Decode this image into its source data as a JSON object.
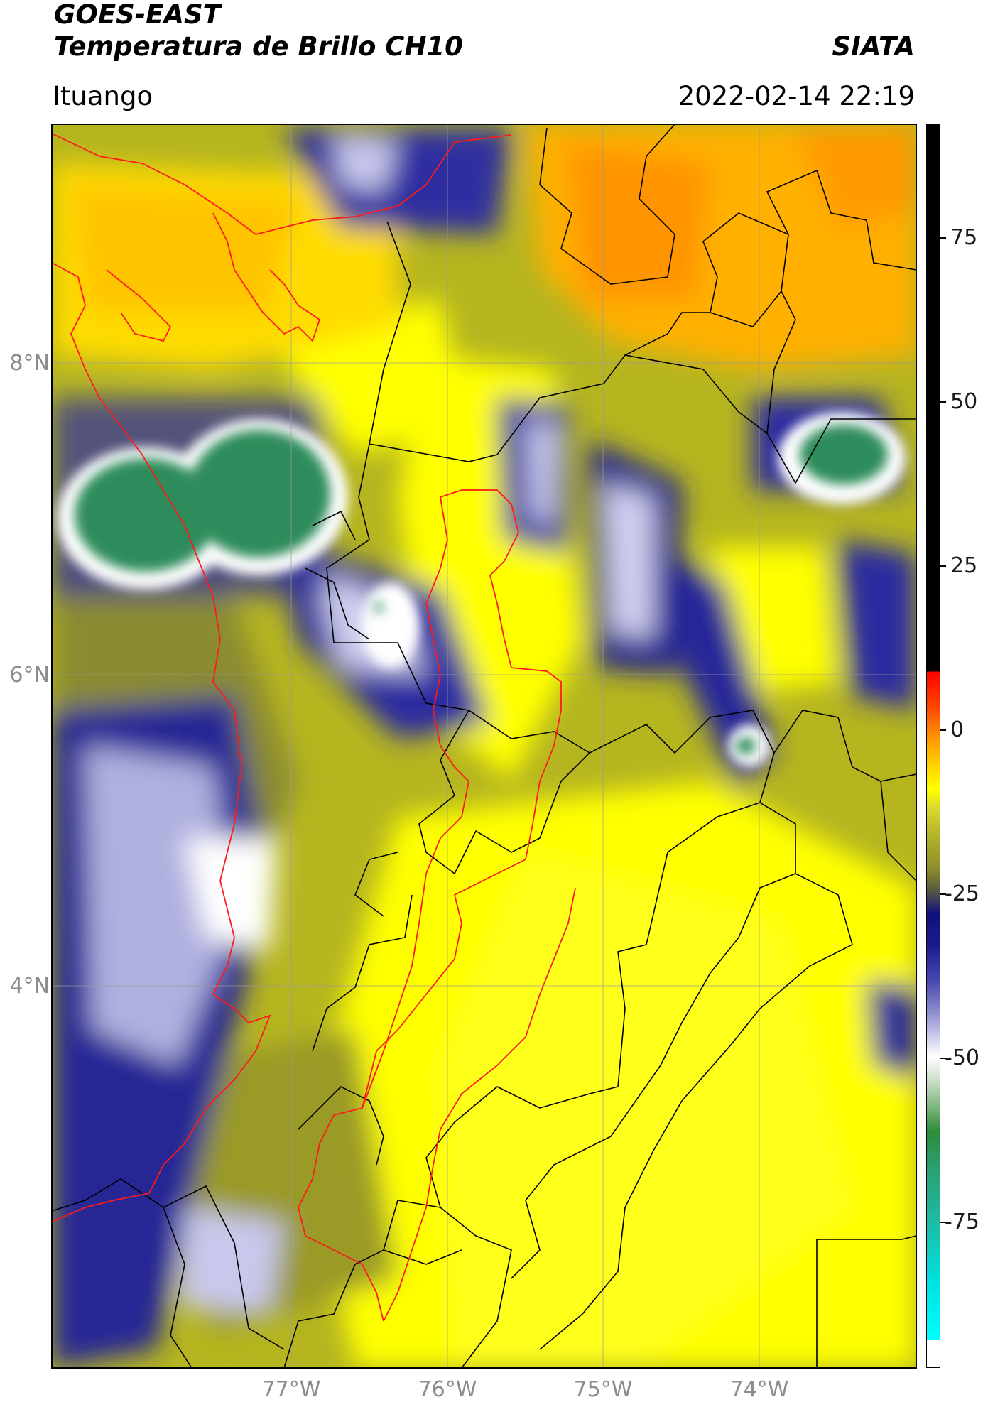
{
  "header": {
    "satellite": "GOES-EAST",
    "product": "Temperatura de Brillo CH10",
    "source": "SIATA",
    "location": "Ituango",
    "datetime": "2022-02-14 22:19"
  },
  "map": {
    "lat_labels": [
      "8°N",
      "6°N",
      "4°N"
    ],
    "lon_labels": [
      "77°W",
      "76°W",
      "75°W",
      "74°W"
    ]
  },
  "colorbar": {
    "ticks": [
      "75",
      "50",
      "25",
      "0",
      "-25",
      "-50",
      "-75"
    ],
    "colors": {
      "hot": "#000000",
      "red": "#ff1a00",
      "orange": "#ff9a00",
      "yellow": "#ffff00",
      "olive": "#8b8b2a",
      "navy": "#10107a",
      "white": "#ffffff",
      "green": "#2e8b3a",
      "teal": "#1fb9a0",
      "cyan": "#00ffff"
    }
  }
}
